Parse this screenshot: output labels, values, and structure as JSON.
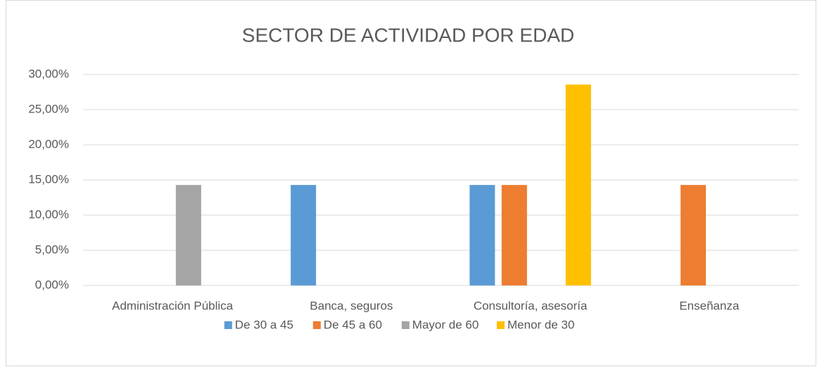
{
  "chart_data": {
    "type": "bar",
    "title": "SECTOR DE ACTIVIDAD POR EDAD",
    "categories": [
      "Administración Pública",
      "Banca, seguros",
      "Consultoría, asesoría",
      "Enseñanza"
    ],
    "series": [
      {
        "name": "De 30 a 45",
        "color": "#5b9bd5",
        "values": [
          null,
          14.29,
          14.29,
          null
        ]
      },
      {
        "name": "De 45 a 60",
        "color": "#ed7d31",
        "values": [
          null,
          null,
          14.29,
          14.29
        ]
      },
      {
        "name": "Mayor de 60",
        "color": "#a5a5a5",
        "values": [
          14.29,
          null,
          null,
          null
        ]
      },
      {
        "name": "Menor de 30",
        "color": "#ffc000",
        "values": [
          null,
          null,
          28.57,
          null
        ]
      }
    ],
    "ylim": [
      0,
      30
    ],
    "yticks": [
      {
        "value": 0,
        "label": "0,00%"
      },
      {
        "value": 5,
        "label": "5,00%"
      },
      {
        "value": 10,
        "label": "10,00%"
      },
      {
        "value": 15,
        "label": "15,00%"
      },
      {
        "value": 20,
        "label": "20,00%"
      },
      {
        "value": 25,
        "label": "25,00%"
      },
      {
        "value": 30,
        "label": "30,00%"
      }
    ],
    "grid": true,
    "legend": "bottom"
  }
}
